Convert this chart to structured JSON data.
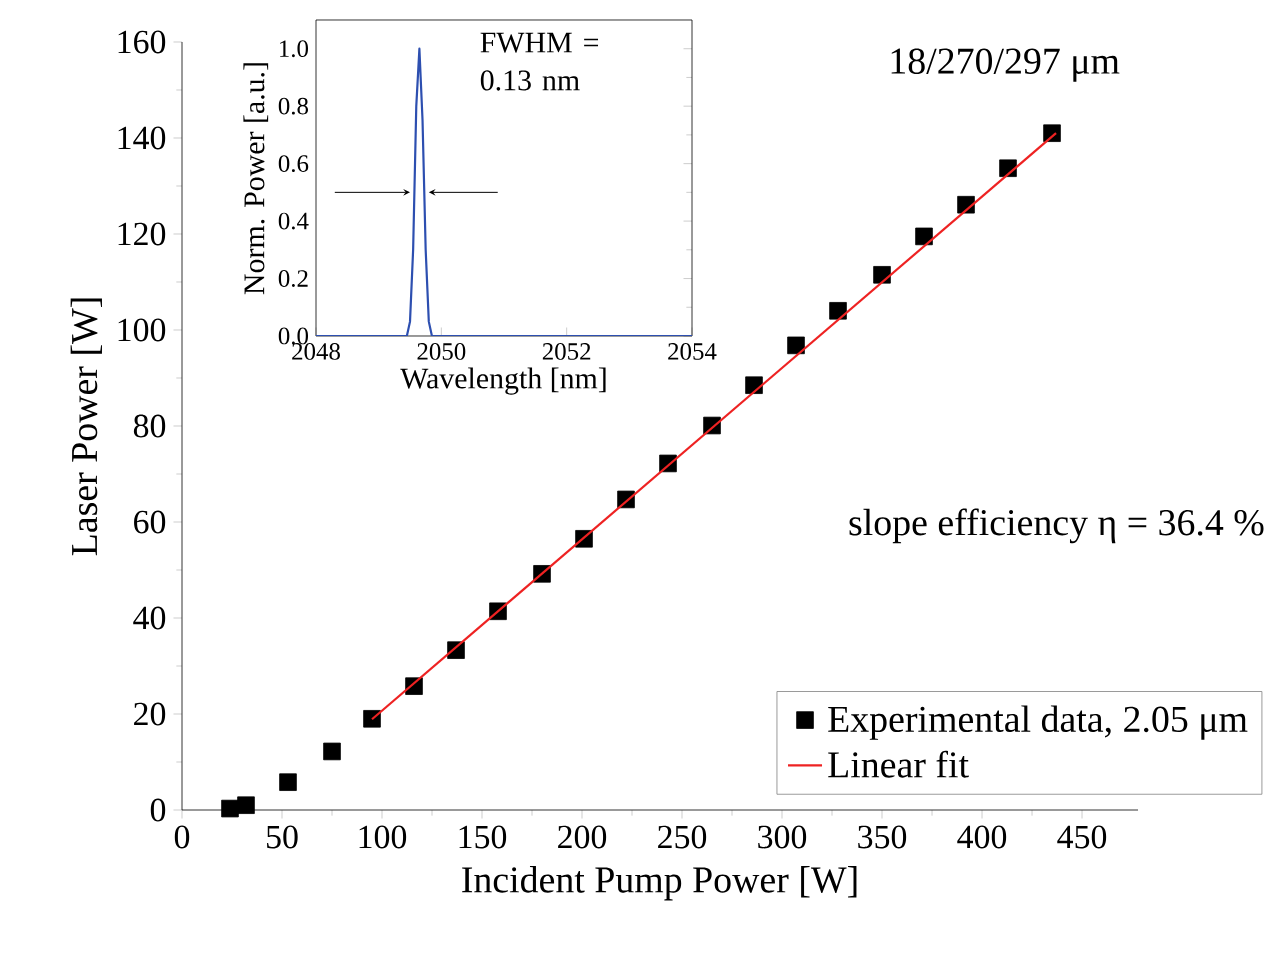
{
  "chart_data": [
    {
      "type": "scatter",
      "xlabel": "Incident Pump Power [W]",
      "ylabel": "Laser Power [W]",
      "xlim": [
        0,
        478
      ],
      "ylim": [
        0,
        160
      ],
      "xticks": [
        0,
        50,
        100,
        150,
        200,
        250,
        300,
        350,
        400,
        450
      ],
      "yticks": [
        0,
        20,
        40,
        60,
        80,
        100,
        120,
        140,
        160
      ],
      "legend": "bottom right",
      "annotations": [
        "18/270/297 μm",
        "slope efficiency η = 36.4 %"
      ],
      "series": [
        {
          "name": "Experimental data, 2.05 μm",
          "color": "#000000",
          "marker": "square",
          "x": [
            24,
            32,
            53,
            75,
            95,
            116,
            137,
            158,
            180,
            201,
            222,
            243,
            265,
            286,
            307,
            328,
            350,
            371,
            392,
            413,
            435
          ],
          "values": [
            0.3,
            1,
            5.8,
            12.2,
            19,
            25.8,
            33.3,
            41.4,
            49.2,
            56.5,
            64.7,
            72.2,
            80.1,
            88.5,
            96.8,
            104,
            111.5,
            119.5,
            126.1,
            133.7,
            141
          ]
        },
        {
          "name": "Linear fit",
          "type": "line",
          "color": "#ee2222",
          "marker": "none",
          "x": [
            95,
            437
          ],
          "values": [
            18.9,
            141
          ]
        }
      ]
    },
    {
      "type": "line",
      "xlabel": "Wavelength [nm]",
      "ylabel": "Norm. Power [a.u.]",
      "xlim": [
        2048,
        2054
      ],
      "ylim": [
        0,
        1.1
      ],
      "xticks": [
        2048,
        2050,
        2052,
        2054
      ],
      "yticks": [
        {
          "value": 0,
          "label": "0.0"
        },
        {
          "value": 0.2,
          "label": "0.2"
        },
        {
          "value": 0.4,
          "label": "0.4"
        },
        {
          "value": 0.6,
          "label": "0.6"
        },
        {
          "value": 0.8,
          "label": "0.8"
        },
        {
          "value": 1,
          "label": "1.0"
        }
      ],
      "annotations": [
        "FWHM = 0.13 nm"
      ],
      "series": [
        {
          "color": "#2d4fb0",
          "x": [
            2048,
            2049.45,
            2049.5,
            2049.55,
            2049.6,
            2049.65,
            2049.7,
            2049.75,
            2049.8,
            2049.85,
            2054
          ],
          "values": [
            0,
            0,
            0.05,
            0.3,
            0.8,
            1.0,
            0.75,
            0.3,
            0.05,
            0,
            0
          ]
        }
      ]
    }
  ]
}
